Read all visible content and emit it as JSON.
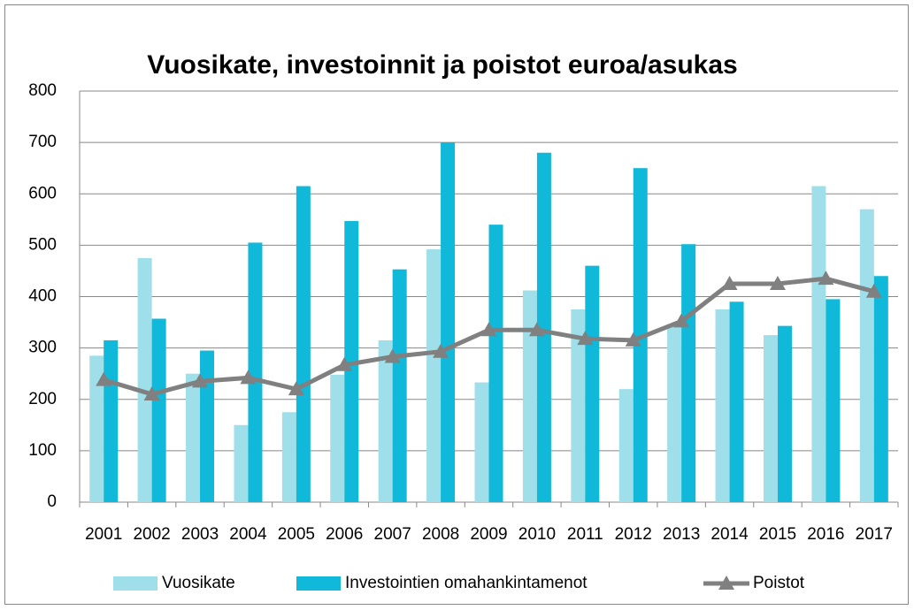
{
  "chart_data": {
    "type": "bar",
    "title": "Vuosikate, investoinnit ja poistot euroa/asukas",
    "categories": [
      "2001",
      "2002",
      "2003",
      "2004",
      "2005",
      "2006",
      "2007",
      "2008",
      "2009",
      "2010",
      "2011",
      "2012",
      "2013",
      "2014",
      "2015",
      "2016",
      "2017"
    ],
    "series": [
      {
        "name": "Vuosikate",
        "type": "bar",
        "color": "#9edfe9",
        "values": [
          285,
          475,
          250,
          150,
          175,
          248,
          315,
          492,
          233,
          412,
          375,
          220,
          345,
          375,
          325,
          615,
          570
        ]
      },
      {
        "name": "Investointien omahankintamenot",
        "type": "bar",
        "color": "#10b8d9",
        "values": [
          315,
          357,
          295,
          505,
          615,
          547,
          453,
          700,
          540,
          680,
          460,
          650,
          502,
          390,
          343,
          395,
          440
        ]
      },
      {
        "name": "Poistot",
        "type": "line",
        "color": "#808080",
        "values": [
          238,
          210,
          235,
          242,
          220,
          267,
          283,
          293,
          335,
          335,
          318,
          315,
          352,
          425,
          425,
          435,
          410
        ]
      }
    ],
    "ylim": [
      0,
      800
    ],
    "yticks": [
      0,
      100,
      200,
      300,
      400,
      500,
      600,
      700,
      800
    ],
    "grid": true,
    "legend": "bottom"
  }
}
